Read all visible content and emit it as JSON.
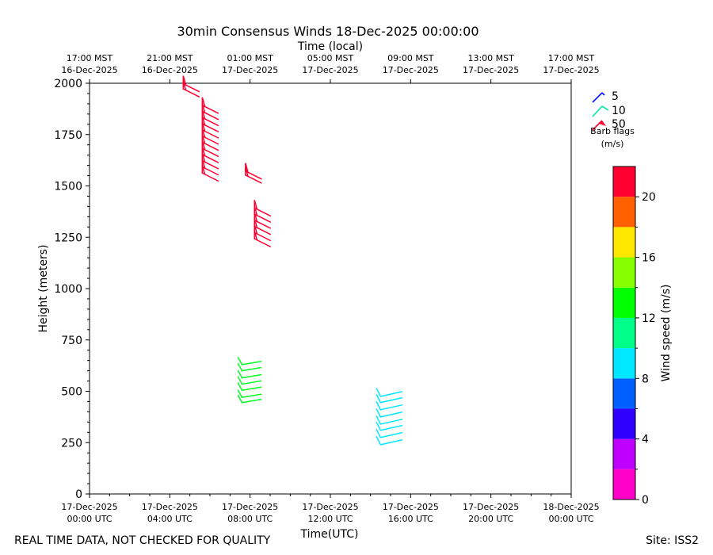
{
  "chart_data": {
    "type": "wind-barb",
    "title": "30min Consensus Winds 18-Dec-2025 00:00:00",
    "xlabel": "Time(UTC)",
    "xlabel_top": "Time (local)",
    "ylabel": "Height (meters)",
    "xlim_hours": [
      0,
      24
    ],
    "ylim": [
      0,
      2000
    ],
    "yticks": [
      0,
      250,
      500,
      750,
      1000,
      1250,
      1500,
      1750,
      2000
    ],
    "xticks_bottom": [
      {
        "h": 0,
        "l1": "17-Dec-2025",
        "l2": "00:00 UTC"
      },
      {
        "h": 4,
        "l1": "17-Dec-2025",
        "l2": "04:00 UTC"
      },
      {
        "h": 8,
        "l1": "17-Dec-2025",
        "l2": "08:00 UTC"
      },
      {
        "h": 12,
        "l1": "17-Dec-2025",
        "l2": "12:00 UTC"
      },
      {
        "h": 16,
        "l1": "17-Dec-2025",
        "l2": "16:00 UTC"
      },
      {
        "h": 20,
        "l1": "17-Dec-2025",
        "l2": "20:00 UTC"
      },
      {
        "h": 24,
        "l1": "18-Dec-2025",
        "l2": "00:00 UTC"
      }
    ],
    "xticks_top": [
      {
        "h": 0,
        "l1": "17:00 MST",
        "l2": "16-Dec-2025"
      },
      {
        "h": 4,
        "l1": "21:00 MST",
        "l2": "16-Dec-2025"
      },
      {
        "h": 8,
        "l1": "01:00 MST",
        "l2": "17-Dec-2025"
      },
      {
        "h": 12,
        "l1": "05:00 MST",
        "l2": "17-Dec-2025"
      },
      {
        "h": 16,
        "l1": "09:00 MST",
        "l2": "17-Dec-2025"
      },
      {
        "h": 20,
        "l1": "13:00 MST",
        "l2": "17-Dec-2025"
      },
      {
        "h": 24,
        "l1": "17:00 MST",
        "l2": "17-Dec-2025"
      }
    ],
    "barb_groups": [
      {
        "time_h": 4.75,
        "heights": [
          1965,
          1990
        ],
        "speed": 21,
        "color": "#ff0030"
      },
      {
        "time_h": 5.7,
        "heights": [
          1555,
          1585,
          1615,
          1645,
          1675,
          1705,
          1735,
          1765,
          1795,
          1825,
          1855,
          1885
        ],
        "speed": 21,
        "color": "#ff0030"
      },
      {
        "time_h": 7.85,
        "heights": [
          1545,
          1565
        ],
        "speed": 21,
        "color": "#ff0030"
      },
      {
        "time_h": 8.3,
        "heights": [
          1235,
          1265,
          1295,
          1325,
          1355,
          1385
        ],
        "speed": 21,
        "color": "#ff0030"
      },
      {
        "time_h": 7.6,
        "heights": [
          445,
          470,
          505,
          535,
          565,
          600,
          630
        ],
        "speed": 13,
        "color": "#00ff20"
      },
      {
        "time_h": 14.5,
        "heights": [
          240,
          275,
          310,
          340,
          375,
          410,
          445,
          475
        ],
        "speed": 9,
        "color": "#00e8ff"
      }
    ],
    "legend": {
      "entries": [
        {
          "label": "5",
          "color": "#0010ff"
        },
        {
          "label": "10",
          "color": "#00e8a0"
        },
        {
          "label": "50",
          "color": "#ff0030"
        }
      ],
      "caption_1": "Barb flags",
      "caption_2": "(m/s)"
    },
    "colorbar": {
      "label": "Wind speed (m/s)",
      "min": 0,
      "max": 22,
      "ticks": [
        0,
        4,
        8,
        12,
        16,
        20
      ],
      "colors": [
        "#ff00c8",
        "#c000ff",
        "#3000ff",
        "#0060ff",
        "#00e8ff",
        "#00ff88",
        "#00ff00",
        "#88ff00",
        "#ffe800",
        "#ff6000",
        "#ff0030"
      ]
    }
  },
  "footer": {
    "disclaimer": "REAL TIME DATA, NOT CHECKED FOR QUALITY",
    "site": "Site: ISS2"
  }
}
